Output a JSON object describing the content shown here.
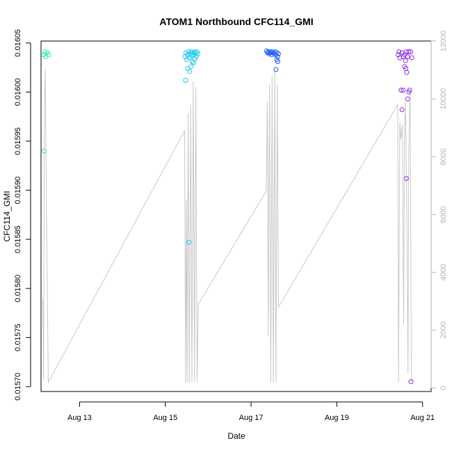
{
  "chart_data": {
    "type": "scatter",
    "title": "ATOM1 Northbound CFC114_GMI",
    "xlabel": "Date",
    "ylabel": "CFC114_GMI",
    "x_ticks": [
      {
        "value": 13,
        "label": "Aug 13"
      },
      {
        "value": 15,
        "label": "Aug 15"
      },
      {
        "value": 17,
        "label": "Aug 17"
      },
      {
        "value": 19,
        "label": "Aug 19"
      },
      {
        "value": 21,
        "label": "Aug 21"
      }
    ],
    "xlim": [
      12.1,
      21.2
    ],
    "ylim": [
      0.015695,
      0.016052
    ],
    "y_ticks": [
      {
        "value": 0.0157,
        "label": "0.01570"
      },
      {
        "value": 0.01575,
        "label": "0.01575"
      },
      {
        "value": 0.0158,
        "label": "0.01580"
      },
      {
        "value": 0.01585,
        "label": "0.01585"
      },
      {
        "value": 0.0159,
        "label": "0.01590"
      },
      {
        "value": 0.01595,
        "label": "0.01595"
      },
      {
        "value": 0.016,
        "label": "0.01600"
      },
      {
        "value": 0.01605,
        "label": "0.01605"
      }
    ],
    "y2lim": [
      -120,
      12000
    ],
    "y2_ticks": [
      {
        "value": 0,
        "label": "0"
      },
      {
        "value": 2000,
        "label": "2000"
      },
      {
        "value": 4000,
        "label": "4000"
      },
      {
        "value": 6000,
        "label": "6000"
      },
      {
        "value": 8000,
        "label": "8000"
      },
      {
        "value": 10000,
        "label": "10000"
      },
      {
        "value": 12000,
        "label": "12000"
      }
    ],
    "grid": false,
    "colors": {
      "line": "#c8c8c8",
      "right_axis": "#b3b3b3"
    },
    "altitude_line": [
      [
        12.14,
        3100
      ],
      [
        12.16,
        300
      ],
      [
        12.18,
        9800
      ],
      [
        12.2,
        11000
      ],
      [
        12.23,
        5800
      ],
      [
        12.27,
        200
      ],
      [
        15.45,
        8900
      ],
      [
        15.47,
        200
      ],
      [
        15.49,
        6500
      ],
      [
        15.51,
        200
      ],
      [
        15.53,
        9500
      ],
      [
        15.56,
        200
      ],
      [
        15.59,
        9800
      ],
      [
        15.62,
        200
      ],
      [
        15.65,
        10600
      ],
      [
        15.68,
        200
      ],
      [
        15.71,
        10400
      ],
      [
        15.74,
        200
      ],
      [
        15.77,
        2900
      ],
      [
        17.35,
        6800
      ],
      [
        17.38,
        9900
      ],
      [
        17.4,
        1800
      ],
      [
        17.43,
        10500
      ],
      [
        17.46,
        200
      ],
      [
        17.49,
        10800
      ],
      [
        17.52,
        200
      ],
      [
        17.55,
        11000
      ],
      [
        17.58,
        200
      ],
      [
        17.61,
        10500
      ],
      [
        17.64,
        2800
      ],
      [
        20.42,
        9800
      ],
      [
        20.44,
        200
      ],
      [
        20.47,
        9200
      ],
      [
        20.5,
        8600
      ],
      [
        20.53,
        9100
      ],
      [
        20.56,
        2200
      ],
      [
        20.58,
        8800
      ],
      [
        20.6,
        9900
      ],
      [
        20.63,
        6700
      ],
      [
        20.66,
        500
      ],
      [
        20.68,
        8200
      ],
      [
        20.71,
        10300
      ],
      [
        20.74,
        200
      ]
    ],
    "series": [
      {
        "name": "",
        "color": "#33e8b0",
        "x": [
          12.16,
          12.19,
          12.21,
          12.25,
          12.28,
          12.17
        ],
        "y": [
          0.016038,
          0.016041,
          0.016036,
          0.01604,
          0.016038,
          0.01594
        ]
      },
      {
        "name": "",
        "color": "#1fc8f0",
        "x": [
          15.46,
          15.48,
          15.5,
          15.52,
          15.54,
          15.56,
          15.58,
          15.6,
          15.62,
          15.64,
          15.66,
          15.68,
          15.7,
          15.72,
          15.74,
          15.76,
          15.52,
          15.57,
          15.6,
          15.63,
          15.66,
          15.69,
          15.47,
          15.55
        ],
        "y": [
          0.016036,
          0.01604,
          0.016033,
          0.016038,
          0.016041,
          0.016035,
          0.016039,
          0.016041,
          0.016037,
          0.01604,
          0.016038,
          0.016041,
          0.01604,
          0.016036,
          0.016041,
          0.016039,
          0.016024,
          0.016021,
          0.016026,
          0.016031,
          0.01603,
          0.016034,
          0.016012,
          0.015847
        ]
      },
      {
        "name": "",
        "color": "#1f5ef0",
        "x": [
          17.36,
          17.38,
          17.4,
          17.42,
          17.44,
          17.46,
          17.48,
          17.5,
          17.52,
          17.54,
          17.56,
          17.58,
          17.6,
          17.62,
          17.64,
          17.6,
          17.62,
          17.58
        ],
        "y": [
          0.016042,
          0.01604,
          0.016041,
          0.016039,
          0.016041,
          0.01604,
          0.016038,
          0.016041,
          0.01604,
          0.016039,
          0.016041,
          0.016038,
          0.01604,
          0.016036,
          0.016039,
          0.016033,
          0.016031,
          0.016023
        ]
      },
      {
        "name": "",
        "color": "#8a2be2",
        "x": [
          20.43,
          20.45,
          20.47,
          20.52,
          20.55,
          20.58,
          20.6,
          20.62,
          20.65,
          20.68,
          20.72,
          20.75,
          20.58,
          20.61,
          20.63,
          20.5,
          20.55,
          20.68,
          20.7,
          20.65,
          20.52,
          20.62,
          20.73
        ],
        "y": [
          0.016038,
          0.016041,
          0.016035,
          0.01604,
          0.016036,
          0.016038,
          0.016032,
          0.016041,
          0.016036,
          0.016041,
          0.016041,
          0.016035,
          0.016026,
          0.016024,
          0.01602,
          0.016002,
          0.016002,
          0.016,
          0.016002,
          0.015993,
          0.015982,
          0.015912,
          0.015705
        ]
      }
    ]
  }
}
